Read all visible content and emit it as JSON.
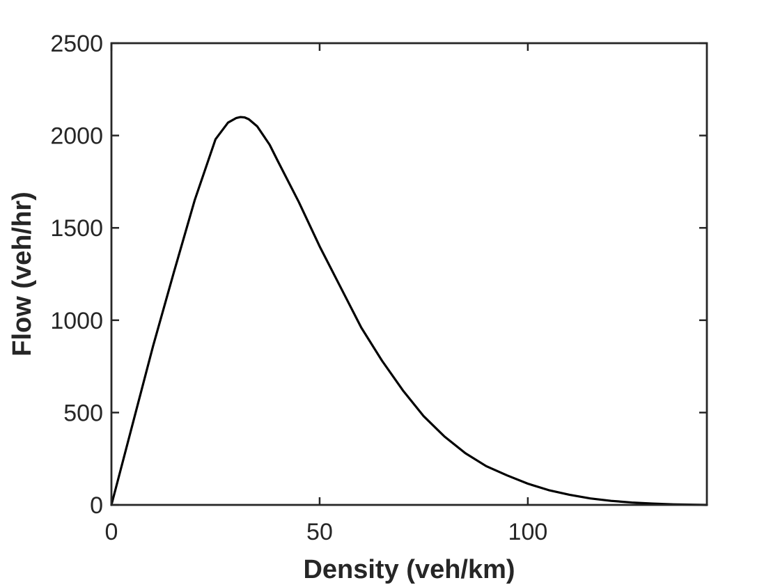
{
  "chart_data": {
    "type": "line",
    "title": "",
    "xlabel": "Density (veh/km)",
    "ylabel": "Flow (veh/hr)",
    "xlim": [
      0,
      143
    ],
    "ylim": [
      0,
      2500
    ],
    "xticks": [
      0,
      50,
      100
    ],
    "xtick_labels": [
      "0",
      "50",
      "100"
    ],
    "yticks": [
      0,
      500,
      1000,
      1500,
      2000,
      2500
    ],
    "ytick_labels": [
      "0",
      "500",
      "1000",
      "1500",
      "2000",
      "2500"
    ],
    "grid": false,
    "box": true,
    "colors": {
      "line": "#000000",
      "axes": "#262626",
      "background": "#ffffff"
    },
    "series": [
      {
        "x": [
          0,
          5,
          10,
          15,
          20,
          25,
          28,
          30,
          31,
          32,
          33,
          35,
          38,
          40,
          45,
          50,
          55,
          60,
          65,
          70,
          75,
          80,
          85,
          90,
          95,
          100,
          105,
          110,
          115,
          120,
          125,
          130,
          135,
          140,
          143
        ],
        "y": [
          0,
          430,
          860,
          1260,
          1650,
          1980,
          2070,
          2095,
          2100,
          2098,
          2088,
          2050,
          1950,
          1860,
          1640,
          1400,
          1180,
          960,
          780,
          620,
          480,
          370,
          280,
          210,
          160,
          115,
          80,
          55,
          35,
          22,
          13,
          7,
          3,
          1,
          0
        ]
      }
    ]
  }
}
